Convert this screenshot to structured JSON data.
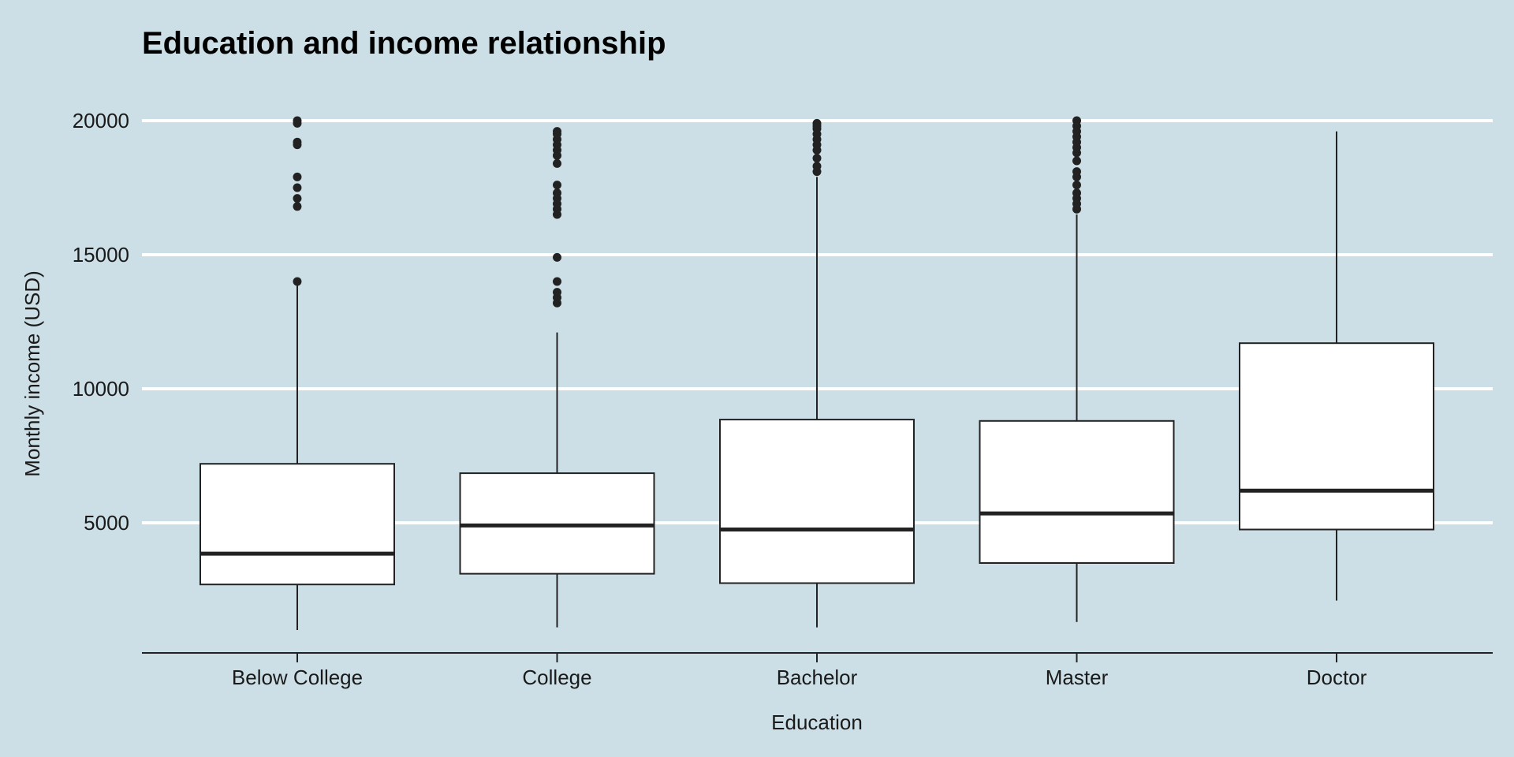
{
  "chart_data": {
    "type": "boxplot",
    "title": "Education and income relationship",
    "xlabel": "Education",
    "ylabel": "Monthly income (USD)",
    "ylim": [
      0,
      20000
    ],
    "yticks": [
      5000,
      10000,
      15000,
      20000
    ],
    "ytick_labels": [
      "5000",
      "10000",
      "15000",
      "20000"
    ],
    "grid": "horizontal major lines",
    "colors": {
      "background": "#cddfe6",
      "grid": "#ffffff",
      "box_fill": "#ffffff",
      "stroke": "#222222"
    },
    "categories": [
      "Below College",
      "College",
      "Bachelor",
      "Master",
      "Doctor"
    ],
    "boxes": [
      {
        "category": "Below College",
        "whisker_low": 1000,
        "q1": 2700,
        "median": 3850,
        "q3": 7200,
        "whisker_high": 13900,
        "outliers": [
          14000,
          16800,
          17100,
          17500,
          17900,
          19100,
          19200,
          19900,
          20000
        ]
      },
      {
        "category": "College",
        "whisker_low": 1100,
        "q1": 3100,
        "median": 4900,
        "q3": 6850,
        "whisker_high": 12100,
        "outliers": [
          13200,
          13400,
          13600,
          14000,
          14900,
          16500,
          16700,
          16900,
          17100,
          17300,
          17600,
          18400,
          18700,
          18900,
          19100,
          19300,
          19500,
          19600
        ]
      },
      {
        "category": "Bachelor",
        "whisker_low": 1100,
        "q1": 2750,
        "median": 4750,
        "q3": 8850,
        "whisker_high": 17900,
        "outliers": [
          18100,
          18300,
          18600,
          18900,
          19100,
          19300,
          19500,
          19700,
          19800,
          19900
        ]
      },
      {
        "category": "Master",
        "whisker_low": 1300,
        "q1": 3500,
        "median": 5350,
        "q3": 8800,
        "whisker_high": 16500,
        "outliers": [
          16700,
          16900,
          17100,
          17300,
          17600,
          17900,
          18100,
          18500,
          18800,
          19000,
          19200,
          19400,
          19600,
          19800,
          20000
        ]
      },
      {
        "category": "Doctor",
        "whisker_low": 2100,
        "q1": 4750,
        "median": 6200,
        "q3": 11700,
        "whisker_high": 19600,
        "outliers": []
      }
    ]
  }
}
